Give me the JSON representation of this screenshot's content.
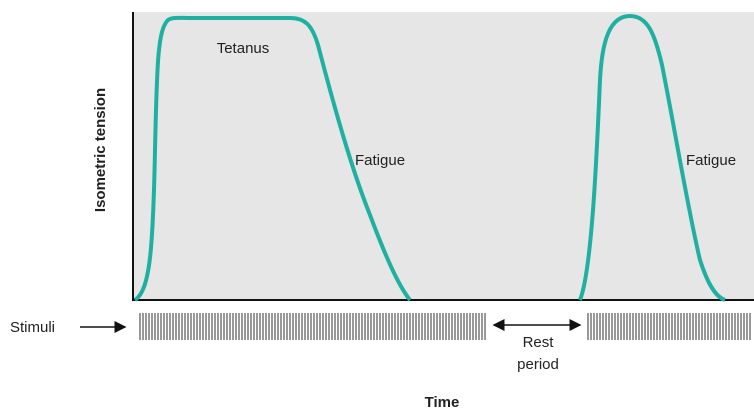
{
  "y_axis_label": "Isometric tension",
  "x_axis_label": "Time",
  "annotations": {
    "tetanus": "Tetanus",
    "fatigue_1": "Fatigue",
    "fatigue_2": "Fatigue"
  },
  "stimuli_label": "Stimuli",
  "rest_period": [
    "Rest",
    "period"
  ]
}
